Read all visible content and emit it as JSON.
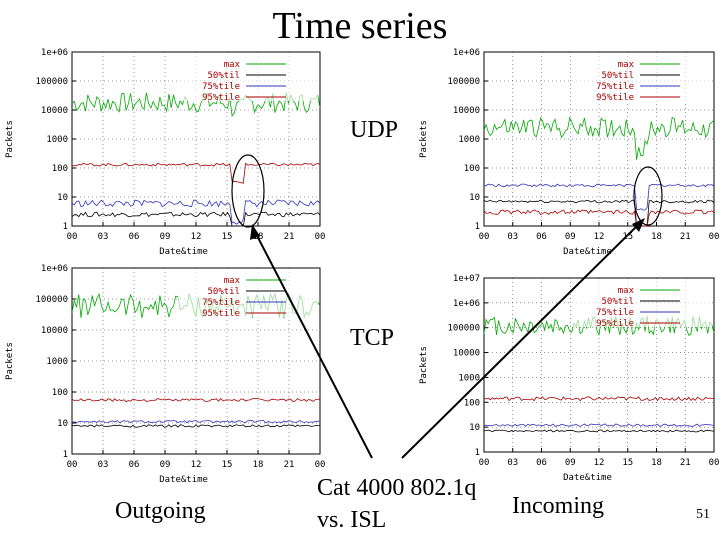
{
  "slide": {
    "title": "Time series",
    "labels": {
      "udp": "UDP",
      "tcp": "TCP",
      "outgoing": "Outgoing",
      "incoming": "Incoming",
      "cat_line1": "Cat 4000 802.1q",
      "cat_line2": "vs. ISL"
    },
    "page_number": "51"
  },
  "colors": {
    "max": "#00aa00",
    "p50": "#000000",
    "p75": "#3333bb",
    "p95": "#aa0000",
    "p95_alt": "#dd4444",
    "grid": "#000000"
  },
  "chart_data": [
    {
      "id": "udp-outgoing",
      "type": "line",
      "ylabel": "Packets",
      "xlabel": "Date&time",
      "yscale": "log",
      "ylim": [
        1,
        1000000
      ],
      "ytick_labels": [
        "1",
        "10",
        "100",
        "1000",
        "10000",
        "100000",
        "1e+06"
      ],
      "xlim": [
        0,
        24
      ],
      "xtick_labels": [
        "00",
        "03",
        "06",
        "09",
        "12",
        "15",
        "18",
        "21",
        "00"
      ],
      "legend": [
        "max",
        "50%til",
        "75%tile",
        "95%tile"
      ],
      "legend_position": "top-right",
      "grid": true,
      "series": [
        {
          "name": "max",
          "level": 18000,
          "jitter": 0.35,
          "dip_at": 16,
          "dip_depth": 0.1
        },
        {
          "name": "50%til",
          "level": 2.5,
          "jitter": 0.08,
          "dip_at": 16,
          "dip_depth": 0.4
        },
        {
          "name": "75%tile",
          "level": 6,
          "jitter": 0.12,
          "dip_at": 16,
          "dip_depth": 0.3
        },
        {
          "name": "95%tile",
          "level": 130,
          "jitter": 0.05,
          "dip_at": 16,
          "dip_depth": 0.3
        }
      ]
    },
    {
      "id": "udp-incoming",
      "type": "line",
      "ylabel": "Packets",
      "xlabel": "Date&time",
      "yscale": "log",
      "ylim": [
        1,
        1000000
      ],
      "ytick_labels": [
        "1",
        "10",
        "100",
        "1000",
        "10000",
        "100000",
        "1e+06"
      ],
      "xlim": [
        0,
        24
      ],
      "xtick_labels": [
        "00",
        "03",
        "06",
        "09",
        "12",
        "15",
        "18",
        "21",
        "00"
      ],
      "legend": [
        "max",
        "50%til",
        "75%tile",
        "95%tile"
      ],
      "legend_position": "top-right",
      "grid": true,
      "series": [
        {
          "name": "max",
          "level": 2500,
          "jitter": 0.35,
          "dip_at": 16.5,
          "dip_depth": 0.4
        },
        {
          "name": "50%til",
          "level": 7,
          "jitter": 0.05,
          "dip_at": 16.5,
          "dip_depth": 0.5
        },
        {
          "name": "75%tile",
          "level": 25,
          "jitter": 0.05,
          "dip_at": 16.5,
          "dip_depth": 0.4
        },
        {
          "name": "95%tile",
          "level": 3,
          "jitter": 0.08,
          "dip_at": 16.5,
          "dip_depth": 0.4
        }
      ]
    },
    {
      "id": "tcp-outgoing",
      "type": "line",
      "ylabel": "Packets",
      "xlabel": "Date&time",
      "yscale": "log",
      "ylim": [
        1,
        1000000
      ],
      "ytick_labels": [
        "1",
        "10",
        "100",
        "1000",
        "10000",
        "100000",
        "1e+06"
      ],
      "xlim": [
        0,
        24
      ],
      "xtick_labels": [
        "00",
        "03",
        "06",
        "09",
        "12",
        "15",
        "18",
        "21",
        "00"
      ],
      "legend": [
        "max",
        "50%til",
        "75%tile",
        "95%tile"
      ],
      "legend_position": "top-right",
      "grid": true,
      "series": [
        {
          "name": "max",
          "level": 60000,
          "jitter": 0.4,
          "dip_at": -1,
          "dip_depth": 0
        },
        {
          "name": "50%til",
          "level": 8,
          "jitter": 0.04,
          "dip_at": -1,
          "dip_depth": 0
        },
        {
          "name": "75%tile",
          "level": 11,
          "jitter": 0.04,
          "dip_at": -1,
          "dip_depth": 0
        },
        {
          "name": "95%tile",
          "level": 55,
          "jitter": 0.05,
          "dip_at": -1,
          "dip_depth": 0
        }
      ]
    },
    {
      "id": "tcp-incoming",
      "type": "line",
      "ylabel": "Packets",
      "xlabel": "Date&time",
      "yscale": "log",
      "ylim": [
        1,
        10000000
      ],
      "ytick_labels": [
        "1",
        "10",
        "100",
        "1000",
        "10000",
        "100000",
        "1e+06",
        "1e+07"
      ],
      "xlim": [
        0,
        24
      ],
      "xtick_labels": [
        "00",
        "03",
        "06",
        "09",
        "12",
        "15",
        "18",
        "21",
        "00"
      ],
      "legend": [
        "max",
        "50%til",
        "75%tile",
        "95%tile"
      ],
      "legend_position": "top-right",
      "grid": true,
      "series": [
        {
          "name": "max",
          "level": 120000,
          "jitter": 0.4,
          "dip_at": -1,
          "dip_depth": 0
        },
        {
          "name": "50%til",
          "level": 7,
          "jitter": 0.04,
          "dip_at": -1,
          "dip_depth": 0
        },
        {
          "name": "75%tile",
          "level": 12,
          "jitter": 0.05,
          "dip_at": -1,
          "dip_depth": 0
        },
        {
          "name": "95%tile",
          "level": 140,
          "jitter": 0.08,
          "dip_at": -1,
          "dip_depth": 0
        }
      ]
    }
  ]
}
